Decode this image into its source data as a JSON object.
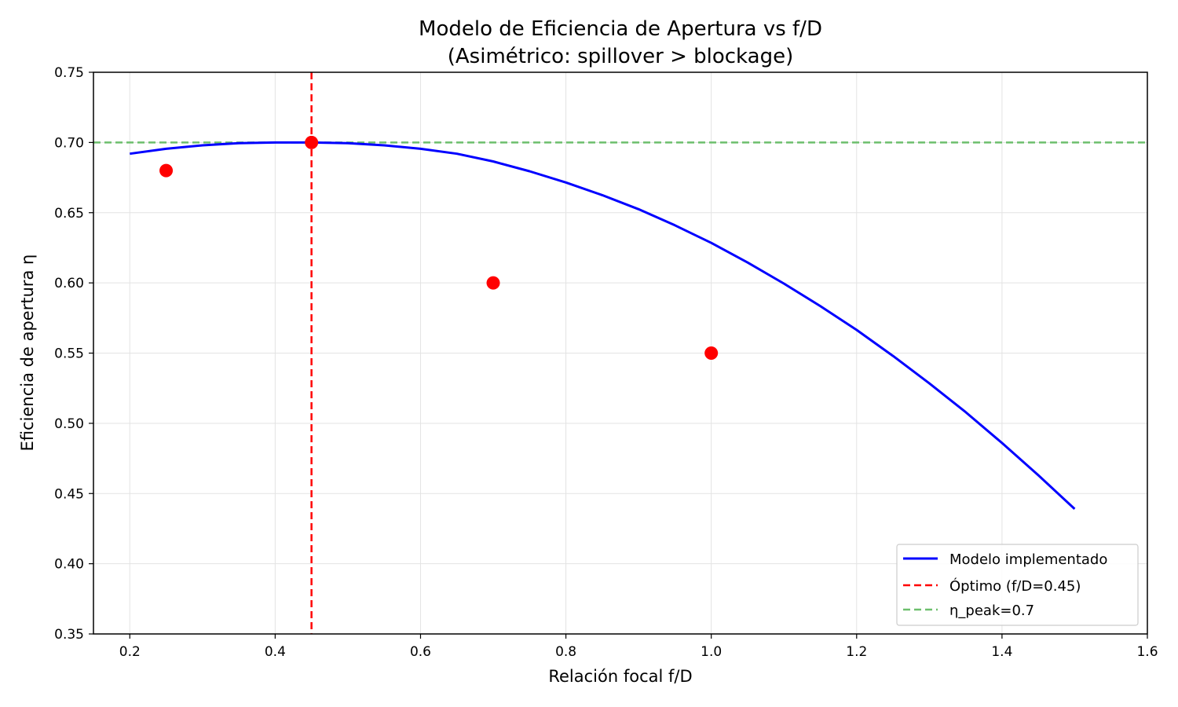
{
  "chart_data": {
    "type": "line",
    "title_line1": "Modelo de Eficiencia de Apertura vs f/D",
    "title_line2": "(Asimétrico: spillover > blockage)",
    "xlabel": "Relación focal f/D",
    "ylabel": "Eficiencia de apertura η",
    "xlim": [
      0.15,
      1.6
    ],
    "ylim": [
      0.35,
      0.75
    ],
    "xticks": [
      0.2,
      0.4,
      0.6,
      0.8,
      1.0,
      1.2,
      1.4,
      1.6
    ],
    "xtick_labels": [
      "0.2",
      "0.4",
      "0.6",
      "0.8",
      "1.0",
      "1.2",
      "1.4",
      "1.6"
    ],
    "yticks": [
      0.35,
      0.4,
      0.45,
      0.5,
      0.55,
      0.6,
      0.65,
      0.7,
      0.75
    ],
    "ytick_labels": [
      "0.35",
      "0.40",
      "0.45",
      "0.50",
      "0.55",
      "0.60",
      "0.65",
      "0.70",
      "0.75"
    ],
    "grid": true,
    "legend_position": "lower-right",
    "series": [
      {
        "name": "Modelo implementado",
        "kind": "line",
        "color": "#0000ff",
        "x": [
          0.2,
          0.25,
          0.3,
          0.35,
          0.4,
          0.45,
          0.5,
          0.55,
          0.6,
          0.65,
          0.7,
          0.75,
          0.8,
          0.85,
          0.9,
          0.95,
          1.0,
          1.05,
          1.1,
          1.15,
          1.2,
          1.25,
          1.3,
          1.35,
          1.4,
          1.45,
          1.5
        ],
        "y": [
          0.692,
          0.6955,
          0.698,
          0.6995,
          0.7,
          0.7,
          0.6995,
          0.698,
          0.6955,
          0.692,
          0.6865,
          0.6795,
          0.6715,
          0.6625,
          0.6525,
          0.641,
          0.6285,
          0.6145,
          0.5995,
          0.5835,
          0.5665,
          0.548,
          0.5285,
          0.508,
          0.486,
          0.463,
          0.439
        ]
      },
      {
        "name": "Óptimo (f/D=0.45)",
        "kind": "vline",
        "color": "#ff0000",
        "x": 0.45
      },
      {
        "name": "η_peak=0.7",
        "kind": "hline",
        "color": "#6dbf6d",
        "y": 0.7
      },
      {
        "name": "",
        "kind": "scatter",
        "color": "#ff0000",
        "x": [
          0.25,
          0.45,
          0.7,
          1.0
        ],
        "y": [
          0.68,
          0.7,
          0.6,
          0.55
        ]
      }
    ]
  }
}
